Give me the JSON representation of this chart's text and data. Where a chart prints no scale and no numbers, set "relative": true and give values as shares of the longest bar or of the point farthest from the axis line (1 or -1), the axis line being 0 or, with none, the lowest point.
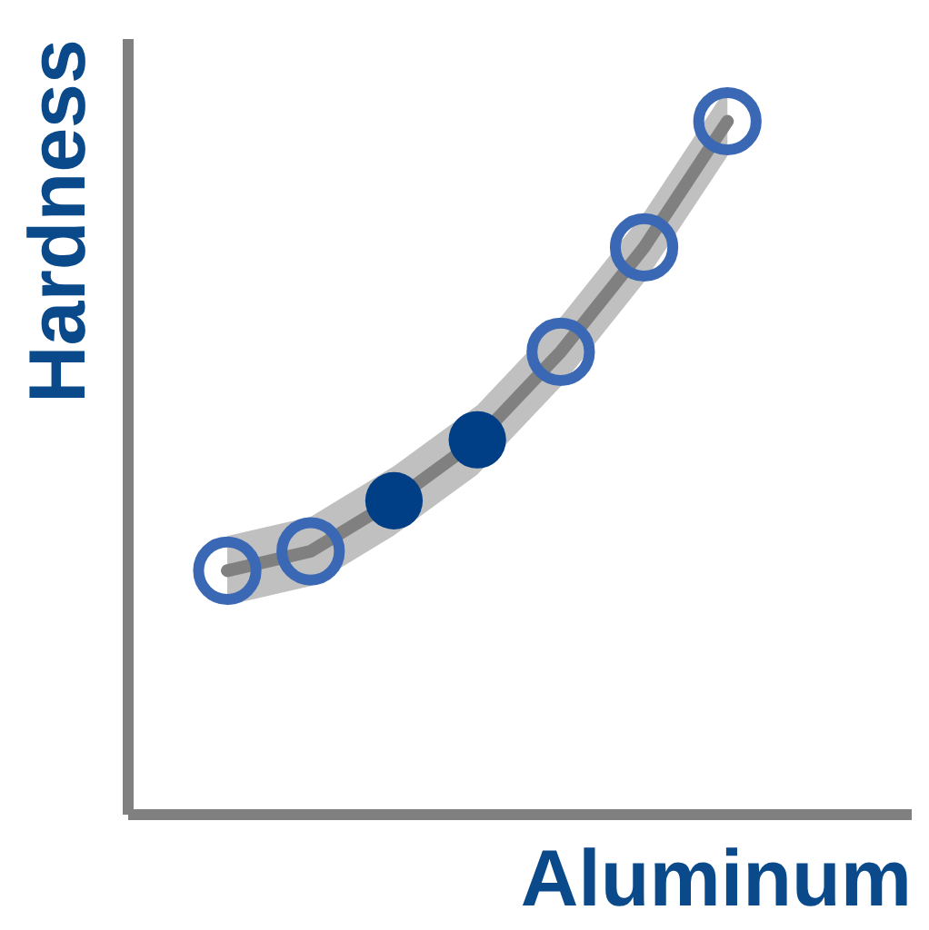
{
  "chart_data": {
    "type": "line",
    "relative": true,
    "xlabel": "Aluminum",
    "ylabel": "Hardness",
    "marker": "circle",
    "categories": [
      null,
      null,
      null,
      null,
      null,
      null,
      null
    ],
    "series": [
      {
        "color": "#808080",
        "colors": [
          "#3a68b4",
          "#3a68b4",
          "#003e85",
          "#003e85",
          "#3a68b4",
          "#3a68b4",
          "#3a68b4"
        ],
        "values": [
          0.351,
          0.379,
          0.452,
          0.54,
          0.667,
          0.818,
          1.0
        ],
        "lower": [
          0.301,
          0.329,
          0.402,
          0.49,
          0.617,
          0.768,
          0.95
        ],
        "upper": [
          0.401,
          0.429,
          0.502,
          0.59,
          0.717,
          0.868,
          1.05
        ]
      }
    ]
  }
}
